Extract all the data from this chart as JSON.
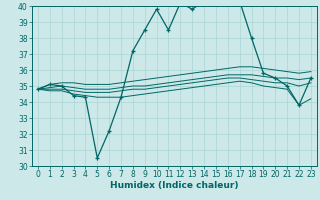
{
  "xlabel": "Humidex (Indice chaleur)",
  "bg_color": "#cce8e8",
  "grid_color": "#aad4d4",
  "line_color": "#006666",
  "xlim": [
    -0.5,
    23.5
  ],
  "ylim": [
    30,
    40
  ],
  "yticks": [
    30,
    31,
    32,
    33,
    34,
    35,
    36,
    37,
    38,
    39,
    40
  ],
  "xticks": [
    0,
    1,
    2,
    3,
    4,
    5,
    6,
    7,
    8,
    9,
    10,
    11,
    12,
    13,
    14,
    15,
    16,
    17,
    18,
    19,
    20,
    21,
    22,
    23
  ],
  "humidex": [
    34.8,
    35.1,
    35.0,
    34.4,
    34.3,
    30.5,
    32.2,
    34.3,
    37.2,
    38.5,
    39.8,
    38.5,
    40.2,
    39.8,
    40.3,
    40.5,
    40.2,
    40.3,
    38.0,
    35.8,
    35.5,
    35.0,
    33.8,
    35.5
  ],
  "upper": [
    34.8,
    35.1,
    35.2,
    35.2,
    35.1,
    35.1,
    35.1,
    35.2,
    35.3,
    35.4,
    35.5,
    35.6,
    35.7,
    35.8,
    35.9,
    36.0,
    36.1,
    36.2,
    36.2,
    36.1,
    36.0,
    35.9,
    35.8,
    35.9
  ],
  "line2": [
    34.8,
    34.9,
    35.0,
    34.9,
    34.8,
    34.8,
    34.8,
    34.9,
    35.0,
    35.0,
    35.1,
    35.2,
    35.3,
    35.4,
    35.5,
    35.6,
    35.7,
    35.7,
    35.7,
    35.6,
    35.5,
    35.5,
    35.4,
    35.5
  ],
  "line3": [
    34.8,
    34.8,
    34.8,
    34.7,
    34.6,
    34.6,
    34.6,
    34.7,
    34.8,
    34.8,
    34.9,
    35.0,
    35.1,
    35.2,
    35.3,
    35.4,
    35.5,
    35.5,
    35.4,
    35.3,
    35.2,
    35.2,
    35.0,
    35.2
  ],
  "lower": [
    34.8,
    34.7,
    34.7,
    34.5,
    34.4,
    34.3,
    34.3,
    34.3,
    34.4,
    34.5,
    34.6,
    34.7,
    34.8,
    34.9,
    35.0,
    35.1,
    35.2,
    35.3,
    35.2,
    35.0,
    34.9,
    34.8,
    33.8,
    34.2
  ]
}
